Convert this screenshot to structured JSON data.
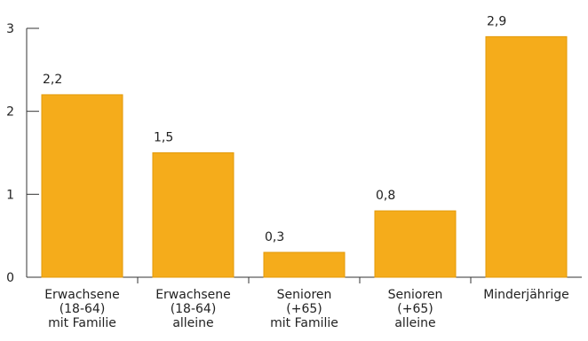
{
  "chart_data": {
    "type": "bar",
    "categories": [
      [
        "Erwachsene",
        "(18-64)",
        "mit Familie"
      ],
      [
        "Erwachsene",
        "(18-64)",
        "alleine"
      ],
      [
        "Senioren",
        "(+65)",
        "mit Familie"
      ],
      [
        "Senioren",
        "(+65)",
        "alleine"
      ],
      [
        "Minderjährige"
      ]
    ],
    "values": [
      2.2,
      1.5,
      0.3,
      0.8,
      2.9
    ],
    "value_labels": [
      "2,2",
      "1,5",
      "0,3",
      "0,8",
      "2,9"
    ],
    "ylim": [
      0,
      3
    ],
    "yticks": [
      0,
      1,
      2,
      3
    ],
    "ytick_labels": [
      "0",
      "1",
      "2",
      "3"
    ],
    "bar_color": "#F5AC1B",
    "bar_edge_color": "#E39A0A",
    "axis_color": "#333333",
    "grid": false
  }
}
